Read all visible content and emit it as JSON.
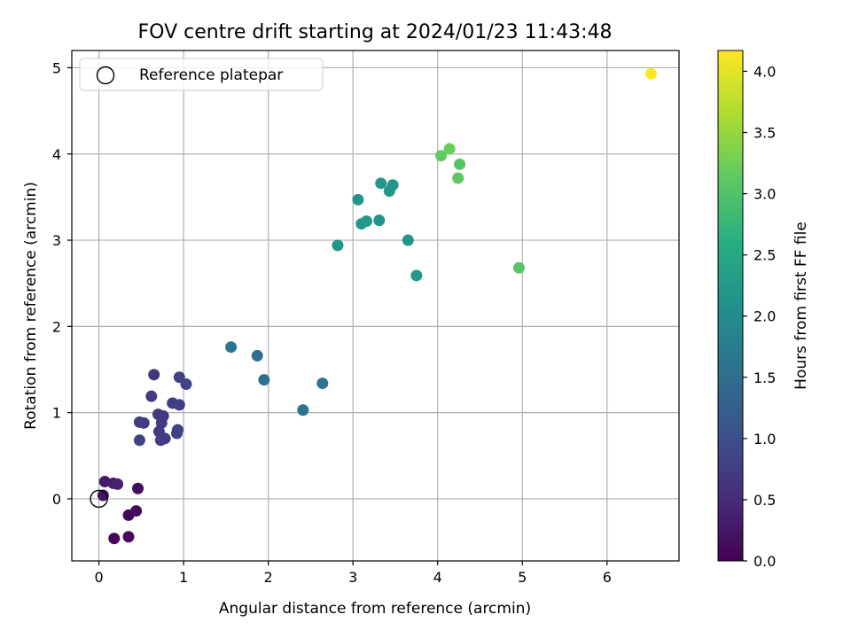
{
  "chart_data": {
    "type": "scatter",
    "title": "FOV centre drift starting at 2024/01/23 11:43:48",
    "xlabel": "Angular distance from reference (arcmin)",
    "ylabel": "Rotation from reference (arcmin)",
    "xlim": [
      -0.32,
      6.85
    ],
    "ylim": [
      -0.72,
      5.2
    ],
    "xticks": [
      0,
      1,
      2,
      3,
      4,
      5,
      6
    ],
    "yticks": [
      0,
      1,
      2,
      3,
      4,
      5
    ],
    "grid": true,
    "legend": {
      "location": "upper-left",
      "label": "Reference platepar"
    },
    "reference_point": {
      "x": 0.0,
      "y": 0.0
    },
    "colorbar": {
      "label": "Hours from first FF file",
      "colormap": "viridis",
      "range": [
        0.0,
        4.17
      ],
      "ticks": [
        "0.0",
        "0.5",
        "1.0",
        "1.5",
        "2.0",
        "2.5",
        "3.0",
        "3.5",
        "4.0"
      ]
    },
    "points": [
      {
        "x": 0.05,
        "y": 0.04,
        "c": 0.22
      },
      {
        "x": 0.07,
        "y": 0.2,
        "c": 0.3
      },
      {
        "x": 0.17,
        "y": 0.18,
        "c": 0.34
      },
      {
        "x": 0.22,
        "y": 0.17,
        "c": 0.38
      },
      {
        "x": 0.18,
        "y": -0.46,
        "c": 0.05
      },
      {
        "x": 0.35,
        "y": -0.44,
        "c": 0.1
      },
      {
        "x": 0.35,
        "y": -0.19,
        "c": 0.08
      },
      {
        "x": 0.44,
        "y": -0.14,
        "c": 0.12
      },
      {
        "x": 0.46,
        "y": 0.12,
        "c": 0.14
      },
      {
        "x": 0.48,
        "y": 0.68,
        "c": 0.8
      },
      {
        "x": 0.48,
        "y": 0.89,
        "c": 0.75
      },
      {
        "x": 0.53,
        "y": 0.88,
        "c": 0.74
      },
      {
        "x": 0.62,
        "y": 1.19,
        "c": 0.7
      },
      {
        "x": 0.65,
        "y": 1.44,
        "c": 0.68
      },
      {
        "x": 0.7,
        "y": 0.98,
        "c": 0.72
      },
      {
        "x": 0.71,
        "y": 0.78,
        "c": 0.7
      },
      {
        "x": 0.74,
        "y": 0.88,
        "c": 0.74
      },
      {
        "x": 0.76,
        "y": 0.96,
        "c": 0.72
      },
      {
        "x": 0.73,
        "y": 0.68,
        "c": 0.76
      },
      {
        "x": 0.78,
        "y": 0.7,
        "c": 0.74
      },
      {
        "x": 0.87,
        "y": 1.11,
        "c": 0.72
      },
      {
        "x": 0.93,
        "y": 0.8,
        "c": 0.8
      },
      {
        "x": 0.92,
        "y": 0.76,
        "c": 0.82
      },
      {
        "x": 0.95,
        "y": 1.09,
        "c": 0.78
      },
      {
        "x": 0.95,
        "y": 1.41,
        "c": 0.8
      },
      {
        "x": 1.03,
        "y": 1.33,
        "c": 0.84
      },
      {
        "x": 1.56,
        "y": 1.76,
        "c": 1.6
      },
      {
        "x": 1.87,
        "y": 1.66,
        "c": 1.5
      },
      {
        "x": 1.95,
        "y": 1.38,
        "c": 1.55
      },
      {
        "x": 2.41,
        "y": 1.03,
        "c": 1.58
      },
      {
        "x": 2.64,
        "y": 1.34,
        "c": 1.62
      },
      {
        "x": 2.82,
        "y": 2.94,
        "c": 2.2
      },
      {
        "x": 3.06,
        "y": 3.47,
        "c": 2.15
      },
      {
        "x": 3.1,
        "y": 3.19,
        "c": 2.2
      },
      {
        "x": 3.16,
        "y": 3.22,
        "c": 2.22
      },
      {
        "x": 3.31,
        "y": 3.23,
        "c": 2.1
      },
      {
        "x": 3.33,
        "y": 3.66,
        "c": 2.2
      },
      {
        "x": 3.43,
        "y": 3.57,
        "c": 2.25
      },
      {
        "x": 3.47,
        "y": 3.64,
        "c": 2.2
      },
      {
        "x": 3.65,
        "y": 3.0,
        "c": 2.15
      },
      {
        "x": 3.75,
        "y": 2.59,
        "c": 2.25
      },
      {
        "x": 4.04,
        "y": 3.98,
        "c": 3.15
      },
      {
        "x": 4.14,
        "y": 4.06,
        "c": 3.2
      },
      {
        "x": 4.24,
        "y": 3.72,
        "c": 3.1
      },
      {
        "x": 4.26,
        "y": 3.88,
        "c": 3.05
      },
      {
        "x": 4.96,
        "y": 2.68,
        "c": 3.05
      },
      {
        "x": 6.52,
        "y": 4.93,
        "c": 4.17
      }
    ]
  }
}
